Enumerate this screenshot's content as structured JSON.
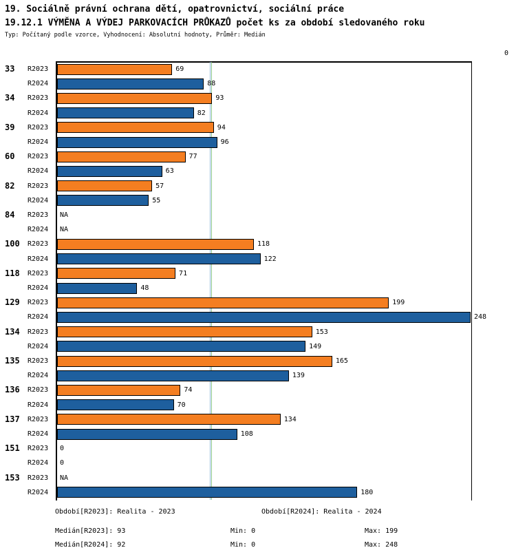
{
  "header": {
    "title_line1": "19. Sociálně právní ochrana dětí, opatrovnictví, sociální práce",
    "title_line2": "19.12.1 VÝMĚNA A VÝDEJ PARKOVACÍCH PRŮKAZŮ počet ks za období sledovaného roku",
    "subtitle": "Typ: Počítaný podle vzorce, Vyhodnocení: Absolutní hodnoty, Průměr: Medián"
  },
  "chart_data": {
    "type": "bar",
    "orientation": "horizontal",
    "title": "19.12.1 VÝMĚNA A VÝDEJ PARKOVACÍCH PRŮKAZŮ počet ks za období sledovaného roku",
    "xlabel": "",
    "ylabel": "",
    "xlim": [
      0,
      248
    ],
    "top_axis_label": "0",
    "na_label": "NA",
    "categories": [
      "33",
      "34",
      "39",
      "60",
      "82",
      "84",
      "100",
      "118",
      "129",
      "134",
      "135",
      "136",
      "137",
      "151",
      "153"
    ],
    "series": [
      {
        "name": "R2023",
        "color": "#F47E21",
        "values": [
          69,
          93,
          94,
          77,
          57,
          null,
          118,
          71,
          199,
          153,
          165,
          74,
          134,
          0,
          null
        ]
      },
      {
        "name": "R2024",
        "color": "#1E5F9E",
        "values": [
          88,
          82,
          96,
          63,
          55,
          null,
          122,
          48,
          248,
          149,
          139,
          70,
          108,
          0,
          180
        ]
      }
    ],
    "median_lines": [
      {
        "name": "median-r2023",
        "value": 93,
        "color": "#8CC88C"
      },
      {
        "name": "median-r2024",
        "value": 92,
        "color": "#8FB8D8"
      }
    ],
    "stats": {
      "median": {
        "R2023": 93,
        "R2024": 92
      },
      "min": {
        "R2023": 0,
        "R2024": 0
      },
      "max": {
        "R2023": 199,
        "R2024": 248
      }
    }
  },
  "footer": {
    "period_r2023": "Období[R2023]: Realita - 2023",
    "period_r2024": "Období[R2024]: Realita - 2024",
    "median_r2023": "Medián[R2023]: 93",
    "min_r2023": "Min: 0",
    "max_r2023": "Max: 199",
    "median_r2024": "Medián[R2024]: 92",
    "min_r2024": "Min: 0",
    "max_r2024": "Max: 248"
  }
}
